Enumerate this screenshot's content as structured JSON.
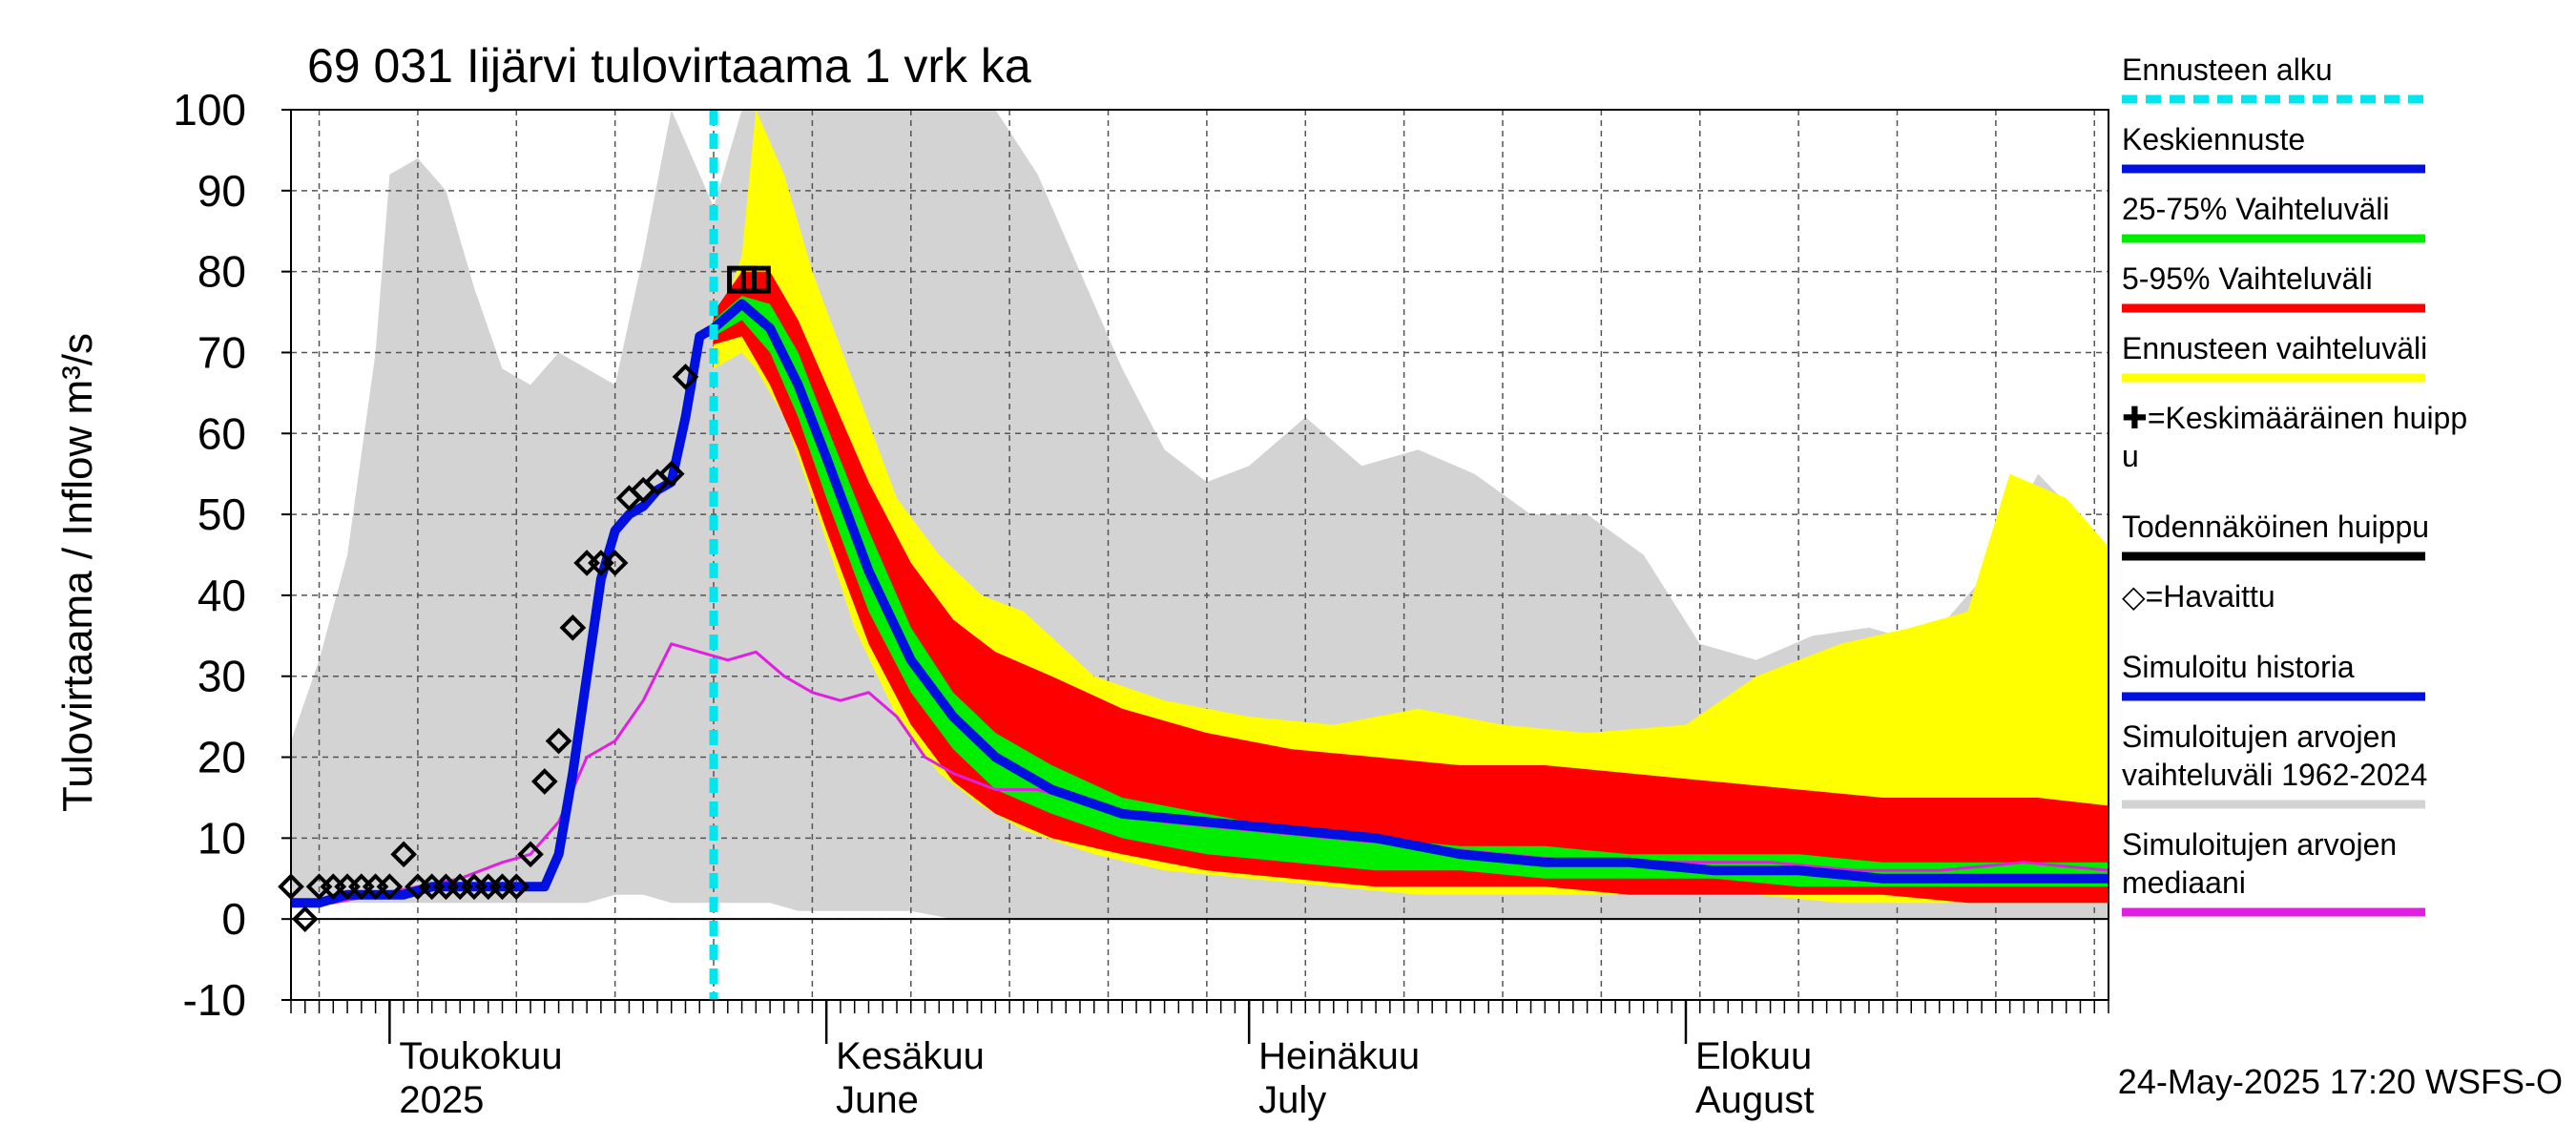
{
  "chart_data": {
    "type": "area",
    "title": "69 031 Iijärvi tulovirtaama 1 vrk ka",
    "ylabel": "Tulovirtaama / Inflow    m³/s",
    "ylim": [
      -10,
      100
    ],
    "yticks": [
      -10,
      0,
      10,
      20,
      30,
      40,
      50,
      60,
      70,
      80,
      90,
      100
    ],
    "x_domain": [
      "2025-04-24",
      "2025-08-31"
    ],
    "forecast_start": "2025-05-24",
    "month_labels": [
      {
        "date": "2025-05-01",
        "line1": "Toukokuu",
        "line2": "2025"
      },
      {
        "date": "2025-06-01",
        "line1": "Kesäkuu",
        "line2": "June"
      },
      {
        "date": "2025-07-01",
        "line1": "Heinäkuu",
        "line2": "July"
      },
      {
        "date": "2025-08-01",
        "line1": "Elokuu",
        "line2": "August"
      }
    ],
    "footer": "24-May-2025 17:20 WSFS-O",
    "colors": {
      "forecast_start": "#00e5ee",
      "mean_forecast": "#0010e0",
      "iqr": "#00ee00",
      "p5_95": "#ff0000",
      "forecast_range": "#ffff00",
      "hist_range": "#d3d3d3",
      "median": "#e020e0",
      "simulated": "#0010e0"
    },
    "legend": [
      {
        "label": "Ennusteen alku",
        "key": "forecast_start",
        "style": "dashed"
      },
      {
        "label": "Keskiennuste",
        "key": "mean_forecast",
        "style": "line"
      },
      {
        "label": "25-75% Vaihteluväli",
        "key": "iqr",
        "style": "line"
      },
      {
        "label": "5-95% Vaihteluväli",
        "key": "p5_95",
        "style": "line"
      },
      {
        "label": "Ennusteen vaihteluväli",
        "key": "forecast_range",
        "style": "line"
      },
      {
        "label": "✚=Keskimääräinen huipp\nu",
        "key": "",
        "style": "none"
      },
      {
        "label": "Todennäköinen huippu",
        "key": "black",
        "style": "line"
      },
      {
        "label": "◇=Havaittu",
        "key": "",
        "style": "none"
      },
      {
        "label": "Simuloitu historia",
        "key": "simulated",
        "style": "line"
      },
      {
        "label": "Simuloitujen arvojen\nvaihteluväli 1962-2024",
        "key": "hist_range",
        "style": "line"
      },
      {
        "label": "Simuloitujen arvojen\nmediaani",
        "key": "median",
        "style": "line"
      }
    ],
    "hist_range": {
      "x": [
        "2025-04-24",
        "2025-04-26",
        "2025-04-28",
        "2025-04-30",
        "2025-05-01",
        "2025-05-03",
        "2025-05-05",
        "2025-05-07",
        "2025-05-09",
        "2025-05-11",
        "2025-05-13",
        "2025-05-15",
        "2025-05-17",
        "2025-05-19",
        "2025-05-21",
        "2025-05-23",
        "2025-05-24",
        "2025-05-26",
        "2025-05-28",
        "2025-05-30",
        "2025-06-01",
        "2025-06-03",
        "2025-06-05",
        "2025-06-07",
        "2025-06-10",
        "2025-06-13",
        "2025-06-16",
        "2025-06-19",
        "2025-06-22",
        "2025-06-25",
        "2025-06-28",
        "2025-07-01",
        "2025-07-05",
        "2025-07-09",
        "2025-07-13",
        "2025-07-17",
        "2025-07-21",
        "2025-07-25",
        "2025-07-29",
        "2025-08-02",
        "2025-08-06",
        "2025-08-10",
        "2025-08-14",
        "2025-08-18",
        "2025-08-22",
        "2025-08-26",
        "2025-08-31"
      ],
      "high": [
        22,
        32,
        45,
        70,
        92,
        94,
        90,
        78,
        68,
        66,
        70,
        68,
        66,
        82,
        100,
        92,
        88,
        100,
        100,
        100,
        100,
        100,
        100,
        100,
        100,
        100,
        92,
        80,
        68,
        58,
        54,
        56,
        62,
        56,
        58,
        55,
        50,
        50,
        45,
        34,
        32,
        35,
        36,
        34,
        42,
        55,
        46
      ],
      "low": [
        2,
        2,
        2,
        2,
        2,
        2,
        2,
        2,
        2,
        2,
        2,
        2,
        3,
        3,
        2,
        2,
        2,
        2,
        2,
        1,
        1,
        1,
        1,
        1,
        0,
        0,
        0,
        0,
        0,
        0,
        0,
        0,
        0,
        0,
        0,
        0,
        0,
        0,
        0,
        0,
        0,
        0,
        0,
        0,
        0,
        0,
        0
      ]
    },
    "forecast_range": {
      "x": [
        "2025-05-24",
        "2025-05-26",
        "2025-05-27",
        "2025-05-29",
        "2025-05-31",
        "2025-06-03",
        "2025-06-06",
        "2025-06-09",
        "2025-06-12",
        "2025-06-15",
        "2025-06-20",
        "2025-06-25",
        "2025-07-01",
        "2025-07-07",
        "2025-07-13",
        "2025-07-19",
        "2025-07-25",
        "2025-08-01",
        "2025-08-06",
        "2025-08-12",
        "2025-08-17",
        "2025-08-21",
        "2025-08-24",
        "2025-08-28",
        "2025-08-31"
      ],
      "high": [
        72,
        82,
        100,
        92,
        80,
        66,
        52,
        45,
        40,
        38,
        30,
        27,
        25,
        24,
        26,
        24,
        23,
        24,
        30,
        34,
        36,
        38,
        55,
        52,
        46
      ],
      "low": [
        68,
        70,
        68,
        62,
        52,
        36,
        25,
        18,
        14,
        11,
        8,
        6,
        5,
        4,
        3,
        3,
        3,
        3,
        3,
        2,
        2,
        2,
        2,
        2,
        2
      ]
    },
    "p5_95": {
      "x": [
        "2025-05-24",
        "2025-05-26",
        "2025-05-28",
        "2025-05-30",
        "2025-06-01",
        "2025-06-04",
        "2025-06-07",
        "2025-06-10",
        "2025-06-13",
        "2025-06-17",
        "2025-06-22",
        "2025-06-28",
        "2025-07-04",
        "2025-07-10",
        "2025-07-16",
        "2025-07-22",
        "2025-07-28",
        "2025-08-03",
        "2025-08-09",
        "2025-08-15",
        "2025-08-21",
        "2025-08-26",
        "2025-08-31"
      ],
      "high": [
        75,
        80,
        80,
        74,
        66,
        54,
        44,
        37,
        33,
        30,
        26,
        23,
        21,
        20,
        19,
        19,
        18,
        17,
        16,
        15,
        15,
        15,
        14
      ],
      "low": [
        71,
        72,
        66,
        58,
        48,
        34,
        24,
        17,
        13,
        10,
        8,
        6,
        5,
        4,
        4,
        4,
        3,
        3,
        3,
        3,
        2,
        2,
        2
      ]
    },
    "iqr": {
      "x": [
        "2025-05-24",
        "2025-05-26",
        "2025-05-28",
        "2025-05-30",
        "2025-06-01",
        "2025-06-04",
        "2025-06-07",
        "2025-06-10",
        "2025-06-13",
        "2025-06-17",
        "2025-06-22",
        "2025-06-28",
        "2025-07-04",
        "2025-07-10",
        "2025-07-16",
        "2025-07-22",
        "2025-07-28",
        "2025-08-03",
        "2025-08-09",
        "2025-08-15",
        "2025-08-21",
        "2025-08-26",
        "2025-08-31"
      ],
      "high": [
        74,
        77,
        76,
        70,
        61,
        48,
        36,
        28,
        23,
        19,
        15,
        13,
        11,
        10,
        9,
        9,
        8,
        8,
        8,
        7,
        7,
        7,
        7
      ],
      "low": [
        72,
        74,
        70,
        62,
        52,
        38,
        28,
        21,
        16,
        13,
        10,
        8,
        7,
        6,
        6,
        5,
        5,
        5,
        4,
        4,
        4,
        4,
        4
      ]
    },
    "mean_forecast": {
      "x": [
        "2025-05-24",
        "2025-05-26",
        "2025-05-28",
        "2025-05-30",
        "2025-06-01",
        "2025-06-04",
        "2025-06-07",
        "2025-06-10",
        "2025-06-13",
        "2025-06-17",
        "2025-06-22",
        "2025-06-28",
        "2025-07-04",
        "2025-07-10",
        "2025-07-16",
        "2025-07-22",
        "2025-07-28",
        "2025-08-03",
        "2025-08-09",
        "2025-08-15",
        "2025-08-21",
        "2025-08-26",
        "2025-08-31"
      ],
      "y": [
        73,
        76,
        73,
        66,
        57,
        43,
        32,
        25,
        20,
        16,
        13,
        12,
        11,
        10,
        8,
        7,
        7,
        6,
        6,
        5,
        5,
        5,
        5
      ]
    },
    "simulated": {
      "x": [
        "2025-04-24",
        "2025-04-26",
        "2025-04-28",
        "2025-04-30",
        "2025-05-02",
        "2025-05-04",
        "2025-05-06",
        "2025-05-08",
        "2025-05-10",
        "2025-05-12",
        "2025-05-13",
        "2025-05-14",
        "2025-05-15",
        "2025-05-16",
        "2025-05-17",
        "2025-05-18",
        "2025-05-19",
        "2025-05-20",
        "2025-05-21",
        "2025-05-22",
        "2025-05-23",
        "2025-05-24"
      ],
      "y": [
        2,
        2,
        3,
        3,
        3,
        4,
        4,
        4,
        4,
        4,
        8,
        18,
        30,
        42,
        48,
        50,
        51,
        53,
        54,
        62,
        72,
        73
      ]
    },
    "median": {
      "x": [
        "2025-04-24",
        "2025-04-27",
        "2025-04-30",
        "2025-05-03",
        "2025-05-06",
        "2025-05-09",
        "2025-05-11",
        "2025-05-13",
        "2025-05-15",
        "2025-05-17",
        "2025-05-19",
        "2025-05-21",
        "2025-05-23",
        "2025-05-25",
        "2025-05-27",
        "2025-05-29",
        "2025-05-31",
        "2025-06-02",
        "2025-06-04",
        "2025-06-06",
        "2025-06-08",
        "2025-06-10",
        "2025-06-13",
        "2025-06-16",
        "2025-06-20",
        "2025-06-25",
        "2025-07-01",
        "2025-07-07",
        "2025-07-13",
        "2025-07-19",
        "2025-07-25",
        "2025-08-01",
        "2025-08-07",
        "2025-08-13",
        "2025-08-19",
        "2025-08-25",
        "2025-08-31"
      ],
      "y": [
        2,
        2,
        3,
        4,
        5,
        7,
        8,
        12,
        20,
        22,
        27,
        34,
        33,
        32,
        33,
        30,
        28,
        27,
        28,
        25,
        20,
        18,
        16,
        16,
        14,
        12,
        11,
        10,
        9,
        8,
        7,
        7,
        7,
        6,
        6,
        7,
        6
      ]
    },
    "observed": {
      "x": [
        "2025-04-24",
        "2025-04-25",
        "2025-04-26",
        "2025-04-27",
        "2025-04-28",
        "2025-04-29",
        "2025-04-30",
        "2025-05-01",
        "2025-05-02",
        "2025-05-03",
        "2025-05-04",
        "2025-05-05",
        "2025-05-06",
        "2025-05-07",
        "2025-05-08",
        "2025-05-09",
        "2025-05-10",
        "2025-05-11",
        "2025-05-12",
        "2025-05-13",
        "2025-05-14",
        "2025-05-15",
        "2025-05-16",
        "2025-05-17",
        "2025-05-18",
        "2025-05-19",
        "2025-05-20",
        "2025-05-21",
        "2025-05-22",
        "2025-05-23",
        "2025-05-24"
      ],
      "y": [
        4,
        0,
        4,
        4,
        4,
        4,
        4,
        4,
        8,
        4,
        4,
        4,
        4,
        4,
        4,
        4,
        4,
        8,
        17,
        22,
        36,
        44,
        44,
        44,
        52,
        53,
        54,
        55,
        67,
        null,
        null
      ]
    },
    "peak_boxes": {
      "x": [
        "2025-05-26",
        "2025-05-27"
      ],
      "y": [
        79,
        79
      ]
    }
  }
}
